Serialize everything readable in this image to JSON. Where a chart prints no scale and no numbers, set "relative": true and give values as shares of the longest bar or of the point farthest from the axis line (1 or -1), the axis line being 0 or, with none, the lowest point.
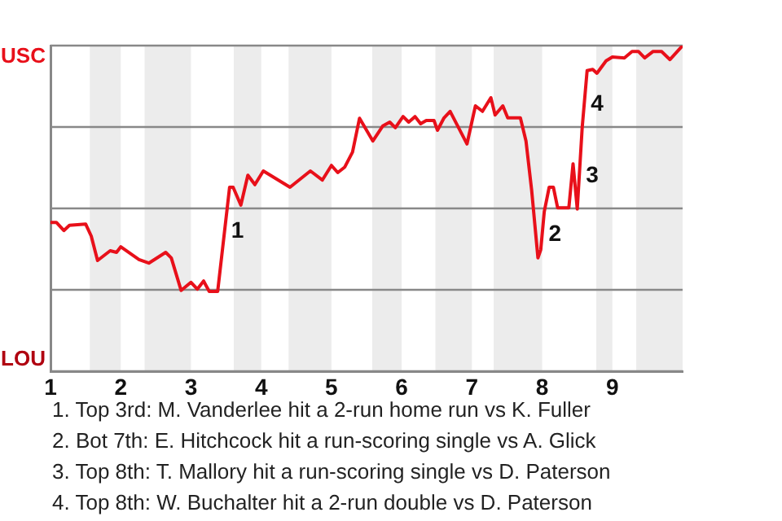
{
  "chart_data": {
    "type": "line",
    "marker": "none",
    "legend": false,
    "relative": true,
    "xlim": [
      1,
      10
    ],
    "xticks": [
      1,
      2,
      3,
      4,
      5,
      6,
      7,
      8,
      9
    ],
    "series": [
      {
        "color": "#e8101a",
        "x": [
          1.0,
          1.083,
          1.19,
          1.27,
          1.5,
          1.58,
          1.67,
          1.85,
          1.94,
          2.0,
          2.26,
          2.4,
          2.64,
          2.72,
          2.86,
          3.0,
          3.09,
          3.18,
          3.26,
          3.38,
          3.55,
          3.6,
          3.71,
          3.81,
          3.91,
          4.03,
          4.41,
          4.7,
          4.87,
          5.0,
          5.09,
          5.19,
          5.3,
          5.4,
          5.59,
          5.73,
          5.83,
          5.91,
          6.02,
          6.1,
          6.19,
          6.27,
          6.35,
          6.46,
          6.51,
          6.6,
          6.69,
          6.81,
          6.93,
          7.05,
          7.15,
          7.27,
          7.33,
          7.44,
          7.51,
          7.69,
          7.77,
          7.85,
          7.94,
          7.98,
          8.03,
          8.1,
          8.16,
          8.22,
          8.38,
          8.44,
          8.5,
          8.57,
          8.64,
          8.72,
          8.78,
          8.91,
          9.0,
          9.17,
          9.28,
          9.37,
          9.46,
          9.58,
          9.7,
          9.82,
          10.0
        ],
        "values": [
          0.457,
          0.457,
          0.432,
          0.448,
          0.452,
          0.415,
          0.34,
          0.37,
          0.365,
          0.382,
          0.343,
          0.332,
          0.365,
          0.348,
          0.248,
          0.273,
          0.252,
          0.277,
          0.245,
          0.245,
          0.565,
          0.565,
          0.51,
          0.602,
          0.573,
          0.615,
          0.565,
          0.615,
          0.587,
          0.632,
          0.61,
          0.627,
          0.673,
          0.777,
          0.707,
          0.753,
          0.765,
          0.748,
          0.782,
          0.765,
          0.782,
          0.76,
          0.77,
          0.77,
          0.74,
          0.777,
          0.798,
          0.748,
          0.698,
          0.815,
          0.798,
          0.84,
          0.787,
          0.815,
          0.778,
          0.778,
          0.707,
          0.557,
          0.348,
          0.373,
          0.49,
          0.565,
          0.565,
          0.502,
          0.502,
          0.637,
          0.498,
          0.748,
          0.923,
          0.927,
          0.915,
          0.953,
          0.965,
          0.962,
          0.982,
          0.982,
          0.962,
          0.982,
          0.982,
          0.957,
          1.0
        ]
      }
    ],
    "ref_lines": [
      {
        "axis": "y",
        "value": 0,
        "color": "#888888",
        "label": "LOU"
      },
      {
        "axis": "y",
        "value": 0.25,
        "color": "#888888"
      },
      {
        "axis": "y",
        "value": 0.5,
        "color": "#888888"
      },
      {
        "axis": "y",
        "value": 0.75,
        "color": "#888888"
      },
      {
        "axis": "y",
        "value": 1,
        "color": "#888888",
        "label": "USC"
      }
    ],
    "bands": [
      {
        "axis": "x",
        "from": 1.56,
        "to": 2,
        "color": "#ececec"
      },
      {
        "axis": "x",
        "from": 2.34,
        "to": 3,
        "color": "#ececec"
      },
      {
        "axis": "x",
        "from": 3.61,
        "to": 4,
        "color": "#ececec"
      },
      {
        "axis": "x",
        "from": 4.39,
        "to": 5,
        "color": "#ececec"
      },
      {
        "axis": "x",
        "from": 5.58,
        "to": 6,
        "color": "#ececec"
      },
      {
        "axis": "x",
        "from": 6.48,
        "to": 7,
        "color": "#ececec"
      },
      {
        "axis": "x",
        "from": 7.31,
        "to": 8,
        "color": "#ececec"
      },
      {
        "axis": "x",
        "from": 8.77,
        "to": 9,
        "color": "#ececec"
      },
      {
        "axis": "x",
        "from": 9.34,
        "to": 10,
        "color": "#ececec"
      }
    ],
    "annotations": [
      {
        "text": "1",
        "x": 3.48,
        "y": 0.43
      },
      {
        "text": "2",
        "x": 8.0,
        "y": 0.42
      },
      {
        "text": "3",
        "x": 8.53,
        "y": 0.6
      },
      {
        "text": "4",
        "x": 8.6,
        "y": 0.82
      },
      "1. Top 3rd: M. Vanderlee hit a 2-run home run vs K. Fuller",
      "2. Bot 7th: E. Hitchcock hit a run-scoring single vs A. Glick",
      "3. Top 8th: T. Mallory hit a run-scoring single vs D. Paterson",
      "4. Top 8th: W. Buchalter hit a 2-run double vs D. Paterson"
    ]
  }
}
